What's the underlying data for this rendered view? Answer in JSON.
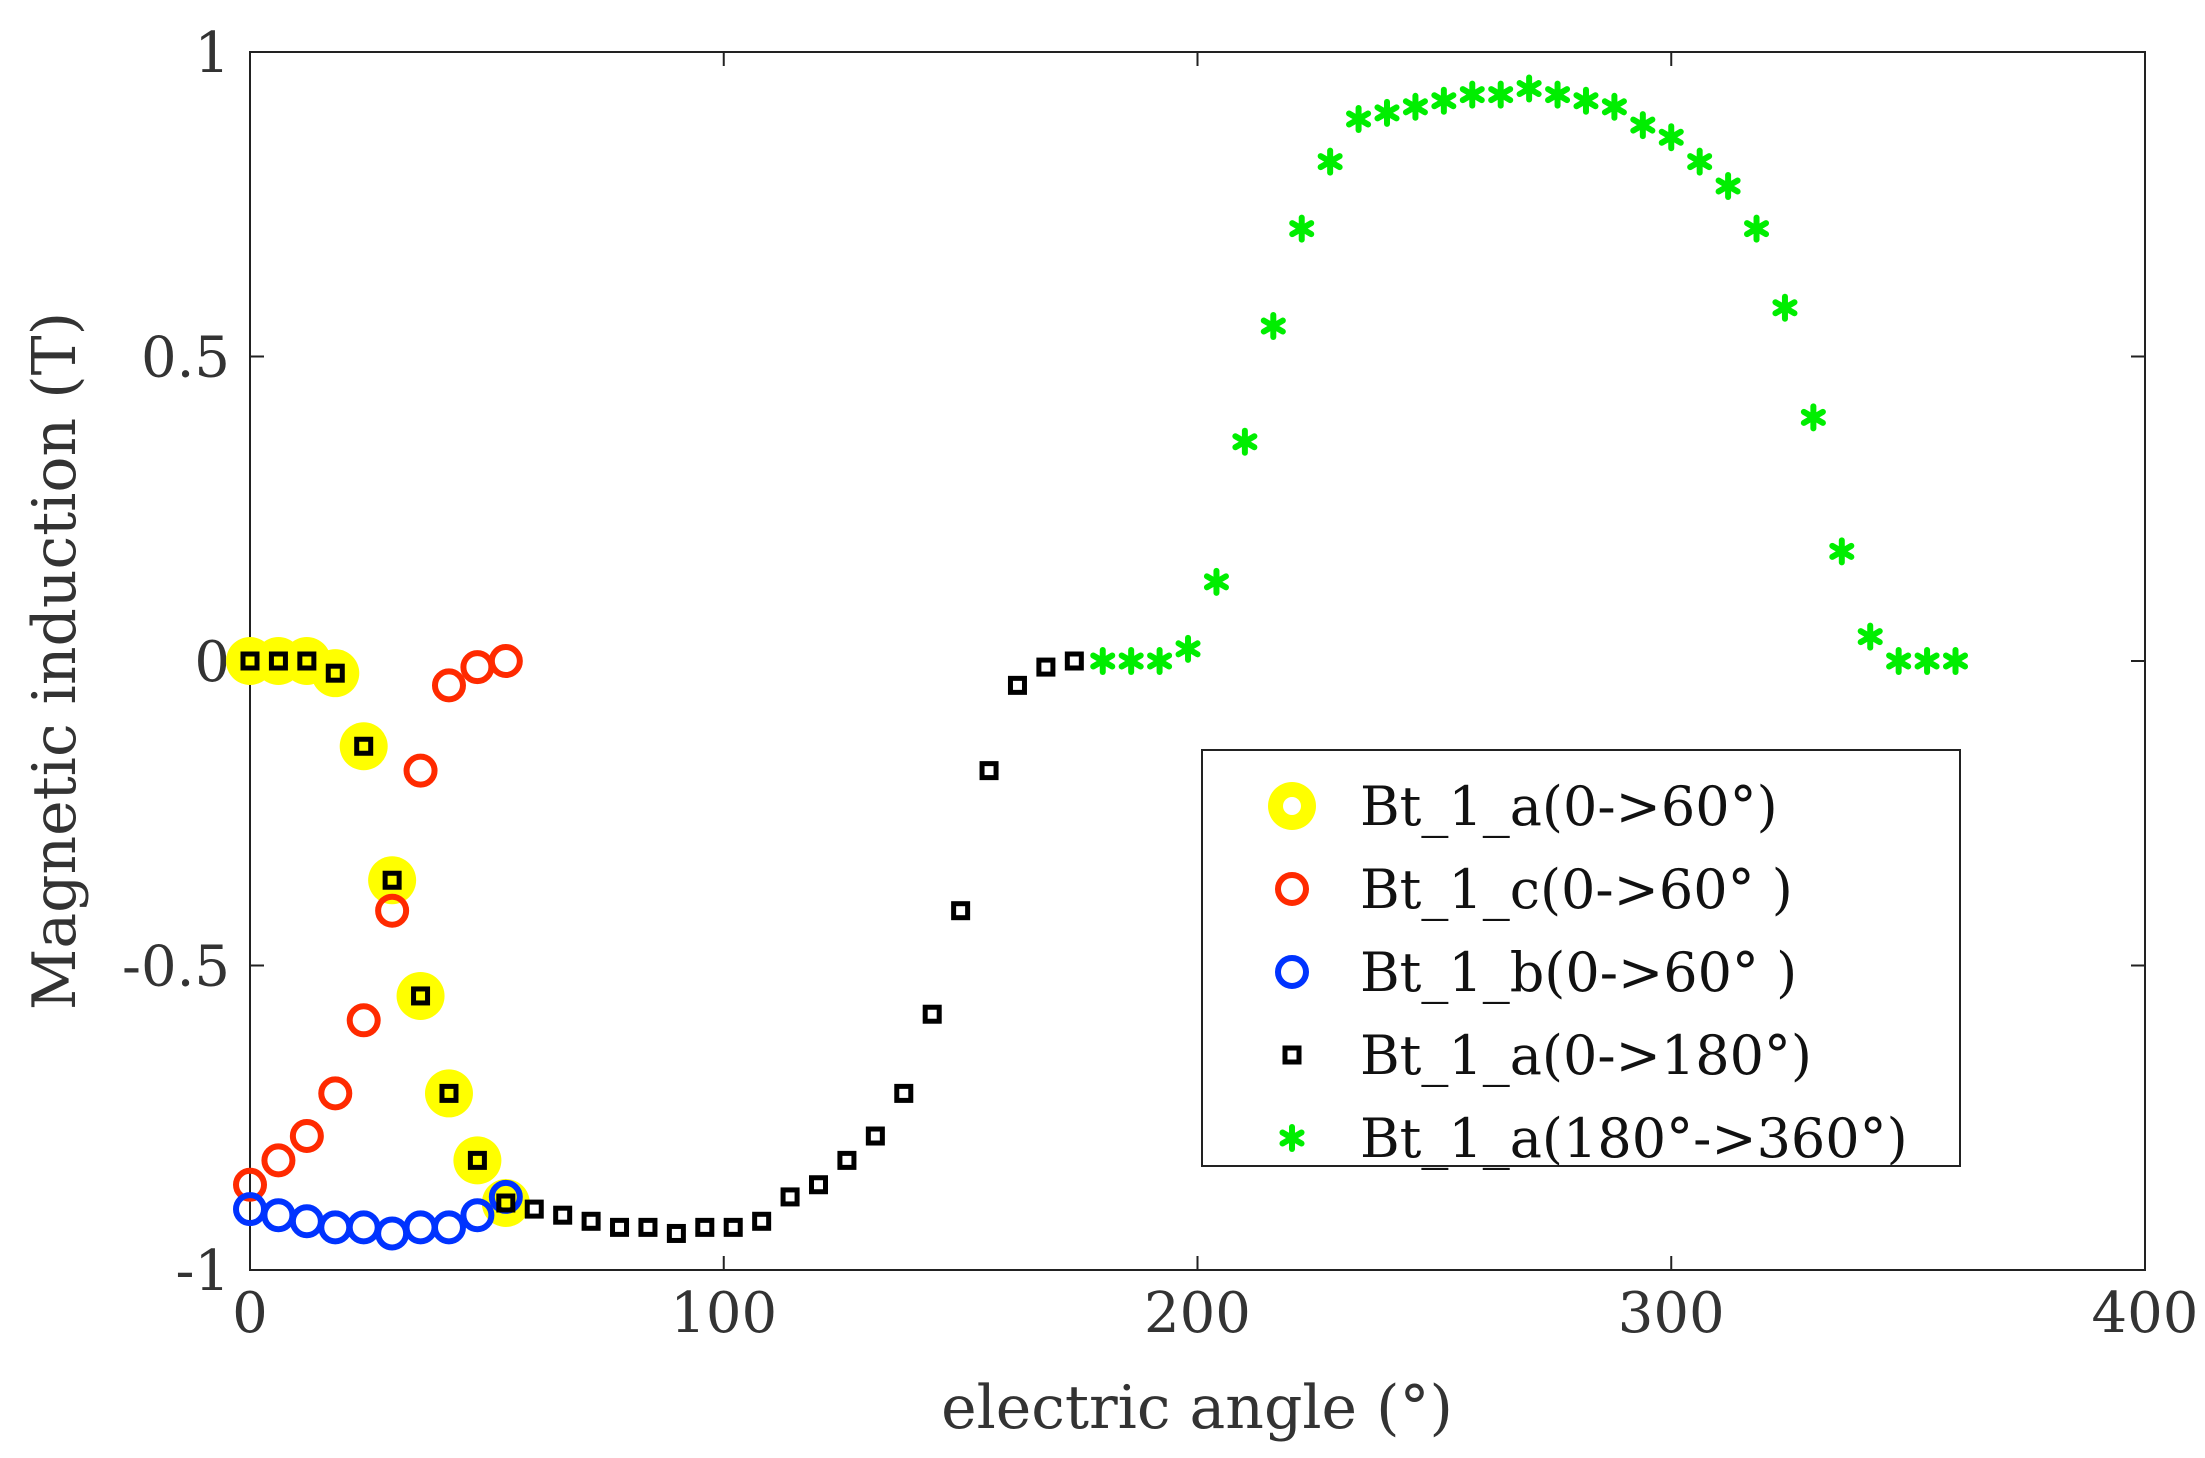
{
  "chart_data": {
    "type": "scatter",
    "title": "",
    "xlabel": "electric angle (°)",
    "ylabel": "Magnetic induction  (T)",
    "xlim": [
      0,
      400
    ],
    "ylim": [
      -1,
      1
    ],
    "xticks": [
      0,
      100,
      200,
      300,
      400
    ],
    "xtick_labels": [
      "0",
      "100",
      "200",
      "300",
      "400"
    ],
    "yticks": [
      -1,
      -0.5,
      0,
      0.5,
      1
    ],
    "ytick_labels": [
      "-1",
      "-0.5",
      "0",
      "0.5",
      "1"
    ],
    "grid": false,
    "legend_position": "lower-right",
    "series": [
      {
        "name": "Bt_1_a(0->60°)",
        "marker": "filled-circle",
        "color": "#ffff00",
        "x": [
          0,
          6,
          12,
          18,
          24,
          30,
          36,
          42,
          48,
          54
        ],
        "y": [
          0.0,
          0.0,
          0.0,
          -0.02,
          -0.14,
          -0.36,
          -0.55,
          -0.71,
          -0.82,
          -0.89
        ]
      },
      {
        "name": "Bt_1_c(0->60° )",
        "marker": "circle",
        "color": "#ff2a00",
        "x": [
          0,
          6,
          12,
          18,
          24,
          30,
          36,
          42,
          48,
          54
        ],
        "y": [
          -0.86,
          -0.82,
          -0.78,
          -0.71,
          -0.59,
          -0.41,
          -0.18,
          -0.04,
          -0.01,
          0.0
        ]
      },
      {
        "name": "Bt_1_b(0->60° )",
        "marker": "circle",
        "color": "#0033ff",
        "x": [
          0,
          6,
          12,
          18,
          24,
          30,
          36,
          42,
          48,
          54
        ],
        "y": [
          -0.9,
          -0.91,
          -0.92,
          -0.93,
          -0.93,
          -0.94,
          -0.93,
          -0.93,
          -0.91,
          -0.88
        ]
      },
      {
        "name": "Bt_1_a(0->180°)",
        "marker": "square",
        "color": "#000000",
        "x": [
          0,
          6,
          12,
          18,
          24,
          30,
          36,
          42,
          48,
          54,
          60,
          66,
          72,
          78,
          84,
          90,
          96,
          102,
          108,
          114,
          120,
          126,
          132,
          138,
          144,
          150,
          156,
          162,
          168,
          174
        ],
        "y": [
          0.0,
          0.0,
          0.0,
          -0.02,
          -0.14,
          -0.36,
          -0.55,
          -0.71,
          -0.82,
          -0.89,
          -0.9,
          -0.91,
          -0.92,
          -0.93,
          -0.93,
          -0.94,
          -0.93,
          -0.93,
          -0.92,
          -0.88,
          -0.86,
          -0.82,
          -0.78,
          -0.71,
          -0.58,
          -0.41,
          -0.18,
          -0.04,
          -0.01,
          0.0
        ]
      },
      {
        "name": "Bt_1_a(180°->360°)",
        "marker": "asterisk",
        "color": "#00ee00",
        "x": [
          180,
          186,
          192,
          198,
          204,
          210,
          216,
          222,
          228,
          234,
          240,
          246,
          252,
          258,
          264,
          270,
          276,
          282,
          288,
          294,
          300,
          306,
          312,
          318,
          324,
          330,
          336,
          342,
          348,
          354,
          360
        ],
        "y": [
          0.0,
          0.0,
          0.0,
          0.02,
          0.13,
          0.36,
          0.55,
          0.71,
          0.82,
          0.89,
          0.9,
          0.91,
          0.92,
          0.93,
          0.93,
          0.94,
          0.93,
          0.92,
          0.91,
          0.88,
          0.86,
          0.82,
          0.78,
          0.71,
          0.58,
          0.4,
          0.18,
          0.04,
          0.0,
          0.0,
          0.0
        ]
      }
    ]
  }
}
